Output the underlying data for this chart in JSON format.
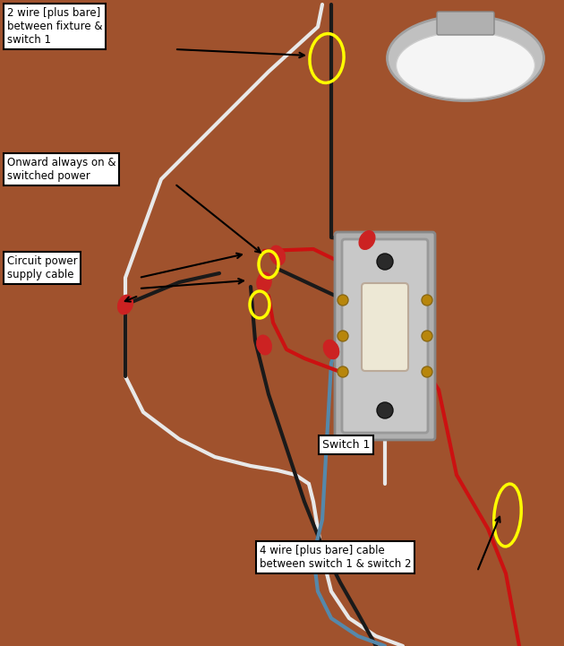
{
  "bg_color": "#A0522D",
  "fig_width": 6.3,
  "fig_height": 7.21,
  "dpi": 100,
  "colors": {
    "black": "#1a1a1a",
    "white": "#E8E8E8",
    "red": "#CC1111",
    "blue": "#5588AA",
    "yellow": "#FFFF00",
    "wire_cap": "#CC2222",
    "bg": "#A0522D",
    "switch_body": "#C8C8C8",
    "switch_border": "#999999",
    "switch_paddle": "#EDE8D5",
    "screw_dark": "#2a2a2a",
    "screw_gold": "#B8860B",
    "fixture_chrome": "#C0C0C0",
    "fixture_white": "#F5F5F5",
    "fixture_rim": "#A0A0A0"
  },
  "labels": {
    "wire2": "2 wire [plus bare]\nbetween fixture &\nswitch 1",
    "onward": "Onward always on &\nswitched power",
    "circuit": "Circuit power\nsupply cable",
    "switch1": "Switch 1",
    "wire4": "4 wire [plus bare] cable\nbetween switch 1 & switch 2"
  }
}
